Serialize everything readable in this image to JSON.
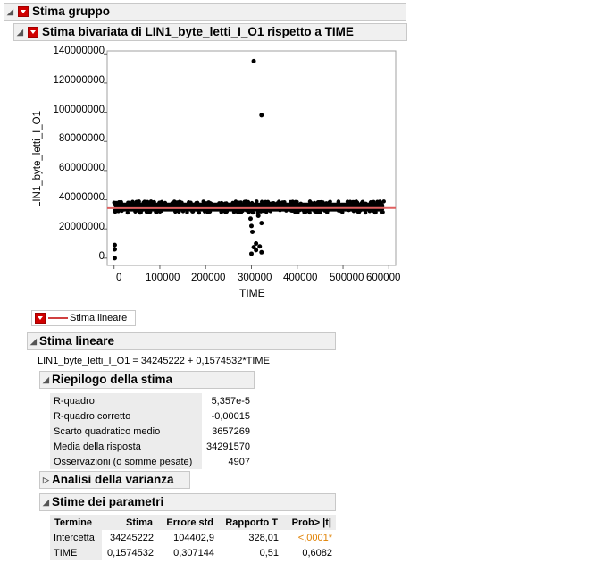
{
  "report": {
    "group_title": "Stima gruppo",
    "bivariate_title": "Stima bivariata di LIN1_byte_letti_I_O1 rispetto a TIME"
  },
  "chart_data": {
    "type": "scatter",
    "ylabel": "LIN1_byte_letti_I_O1",
    "xlabel": "TIME",
    "xlim": [
      -15000,
      615000
    ],
    "ylim": [
      -5000000,
      142000000
    ],
    "x_ticks": [
      "0",
      "100000",
      "200000",
      "300000",
      "400000",
      "500000",
      "600000"
    ],
    "y_ticks": [
      "0",
      "20000000",
      "40000000",
      "60000000",
      "80000000",
      "100000000",
      "120000000",
      "140000000"
    ],
    "band": {
      "x_start": 0,
      "x_end": 590000,
      "y_low": 32000000,
      "y_high": 38000000
    },
    "outliers": [
      {
        "x": 305000,
        "y": 135000000
      },
      {
        "x": 322000,
        "y": 98000000
      },
      {
        "x": 1500,
        "y": 9000000
      },
      {
        "x": 1500,
        "y": 6000000
      },
      {
        "x": 1500,
        "y": 0
      },
      {
        "x": 298000,
        "y": 27000000
      },
      {
        "x": 300000,
        "y": 22000000
      },
      {
        "x": 302000,
        "y": 18000000
      },
      {
        "x": 305000,
        "y": 7500000
      },
      {
        "x": 310000,
        "y": 5500000
      },
      {
        "x": 318000,
        "y": 8000000
      },
      {
        "x": 322000,
        "y": 4000000
      },
      {
        "x": 300000,
        "y": 3000000
      },
      {
        "x": 315000,
        "y": 29000000
      },
      {
        "x": 322000,
        "y": 24000000
      },
      {
        "x": 310000,
        "y": 10000000
      }
    ],
    "fit_line": {
      "intercept": 34245222,
      "slope": 0.1574532,
      "color": "#e06060"
    },
    "point_color": "#000000"
  },
  "legend": {
    "label": "Stima lineare"
  },
  "fit": {
    "title": "Stima lineare",
    "equation": "LIN1_byte_letti_I_O1 = 34245222 + 0,1574532*TIME"
  },
  "summary": {
    "title": "Riepilogo della stima",
    "rows": [
      {
        "label": "R-quadro",
        "value": "5,357e-5"
      },
      {
        "label": "R-quadro corretto",
        "value": "-0,00015"
      },
      {
        "label": "Scarto quadratico medio",
        "value": "3657269"
      },
      {
        "label": "Media della risposta",
        "value": "34291570"
      },
      {
        "label": "Osservazioni (o somme pesate)",
        "value": "4907"
      }
    ]
  },
  "anova": {
    "title": "Analisi della varianza"
  },
  "params": {
    "title": "Stime dei parametri",
    "headers": [
      "Termine",
      "Stima",
      "Errore std",
      "Rapporto T",
      "Prob> |t|"
    ],
    "rows": [
      [
        "Intercetta",
        "34245222",
        "104402,9",
        "328,01",
        "<,0001*"
      ],
      [
        "TIME",
        "0,1574532",
        "0,307144",
        "0,51",
        "0,6082"
      ]
    ],
    "signif_color": "#e08000"
  }
}
